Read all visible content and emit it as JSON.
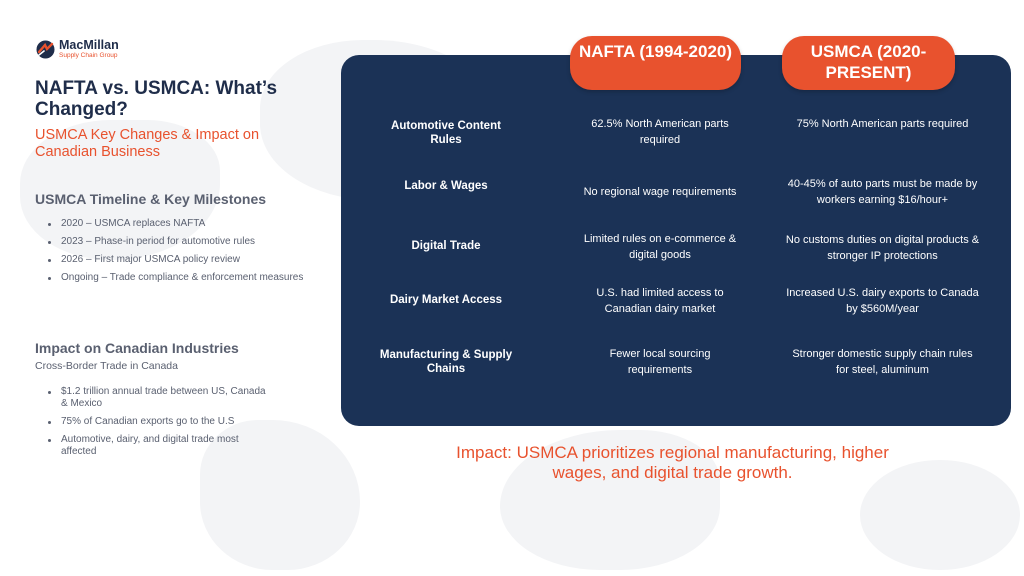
{
  "logo": {
    "name": "MacMillan",
    "tagline": "Supply Chain Group"
  },
  "title": "NAFTA vs. USMCA: What’s Changed?",
  "subtitle": "USMCA Key Changes & Impact on Canadian Business",
  "timeline": {
    "heading": "USMCA Timeline & Key Milestones",
    "items": [
      "2020 – USMCA replaces NAFTA",
      "2023 – Phase-in period for automotive rules",
      "2026 – First major USMCA policy review",
      "Ongoing – Trade compliance & enforcement measures"
    ]
  },
  "impact_industries": {
    "heading": "Impact on Canadian Industries",
    "subheading": "Cross-Border Trade in Canada",
    "items": [
      "$1.2 trillion annual trade between US, Canada & Mexico",
      "75% of Canadian exports go to the U.S",
      "Automotive, dairy, and digital trade most affected"
    ]
  },
  "comparison": {
    "nafta_header": "NAFTA (1994-2020)",
    "usmca_header": "USMCA (2020-PRESENT)",
    "rows": [
      {
        "label": "Automotive Content Rules",
        "nafta": "62.5% North American parts required",
        "usmca": "75% North American parts required"
      },
      {
        "label": "Labor & Wages",
        "nafta": "No regional wage requirements",
        "usmca": "40-45% of auto parts must be made by workers earning $16/hour+"
      },
      {
        "label": "Digital Trade",
        "nafta": "Limited rules on e-commerce & digital goods",
        "usmca": "No customs duties on digital products & stronger IP protections"
      },
      {
        "label": "Dairy Market Access",
        "nafta": "U.S. had limited access to Canadian dairy market",
        "usmca": "Increased U.S. dairy exports to Canada by $560M/year"
      },
      {
        "label": "Manufacturing & Supply Chains",
        "nafta": "Fewer local sourcing requirements",
        "usmca": "Stronger domestic supply chain rules for steel, aluminum"
      }
    ]
  },
  "impact_statement": "Impact: USMCA prioritizes regional manufacturing, higher wages, and digital trade growth.",
  "colors": {
    "navy": "#1b3256",
    "accent": "#e8522e",
    "gray_text": "#5a6070"
  }
}
